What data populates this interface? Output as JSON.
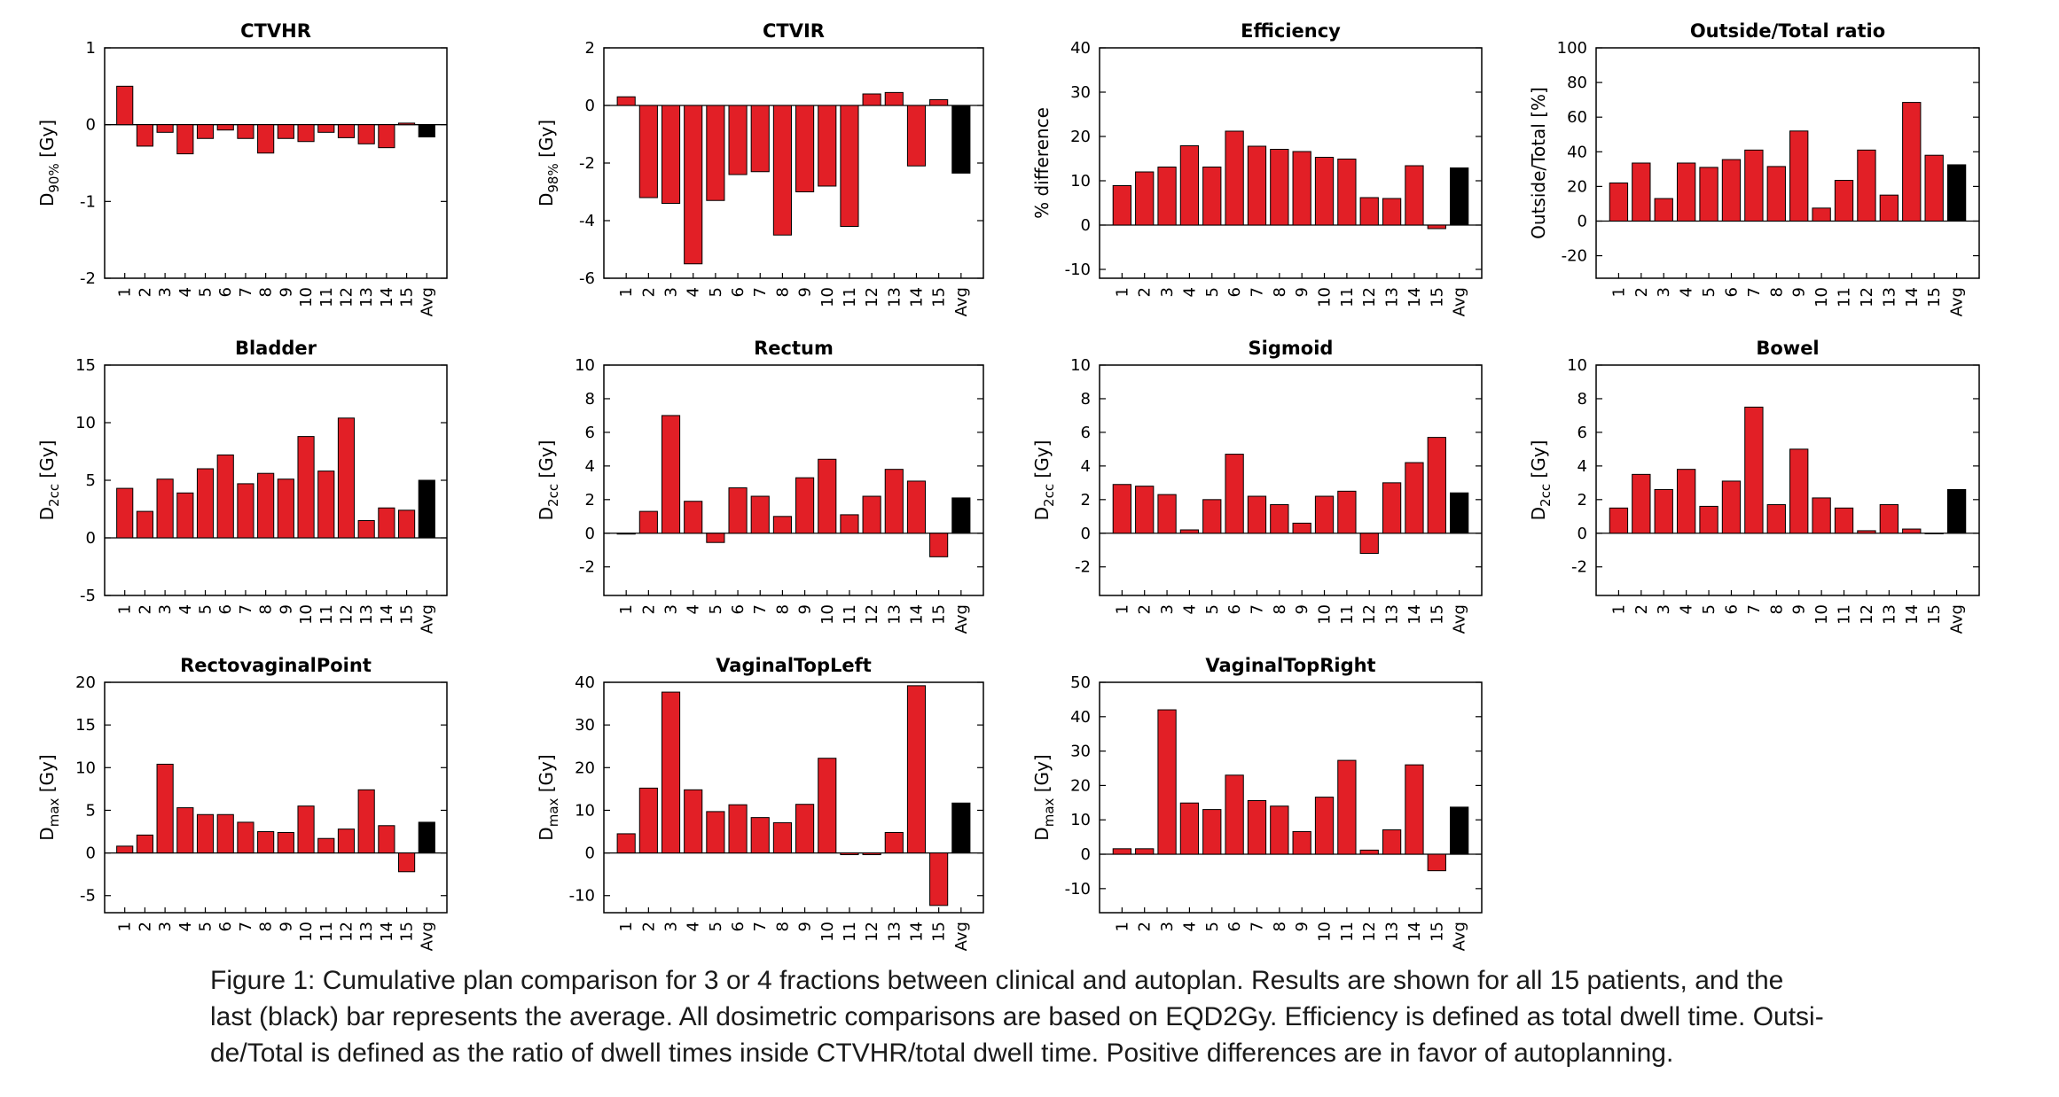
{
  "colors": {
    "bar": "#e21f26",
    "avg": "#000000",
    "edge": "#000000"
  },
  "chart_data": [
    {
      "type": "bar",
      "title": "CTVHR",
      "ylabel": {
        "main": "D",
        "sub": "90%",
        "unit": " [Gy]"
      },
      "categories": [
        "1",
        "2",
        "3",
        "4",
        "5",
        "6",
        "7",
        "8",
        "9",
        "10",
        "11",
        "12",
        "13",
        "14",
        "15",
        "Avg"
      ],
      "values": [
        0.5,
        -0.28,
        -0.1,
        -0.38,
        -0.18,
        -0.07,
        -0.18,
        -0.37,
        -0.18,
        -0.22,
        -0.1,
        -0.17,
        -0.25,
        -0.3,
        0.02,
        -0.16
      ],
      "ylim": [
        -2,
        1
      ],
      "yticks": [
        -2,
        -1,
        0,
        1
      ],
      "ytick_labels": [
        "-2",
        "-1",
        "0",
        "1"
      ]
    },
    {
      "type": "bar",
      "title": "CTVIR",
      "ylabel": {
        "main": "D",
        "sub": "98%",
        "unit": " [Gy]"
      },
      "categories": [
        "1",
        "2",
        "3",
        "4",
        "5",
        "6",
        "7",
        "8",
        "9",
        "10",
        "11",
        "12",
        "13",
        "14",
        "15",
        "Avg"
      ],
      "values": [
        0.3,
        -3.2,
        -3.4,
        -5.5,
        -3.3,
        -2.4,
        -2.3,
        -4.5,
        -3.0,
        -2.8,
        -4.2,
        0.4,
        0.45,
        -2.1,
        0.2,
        -2.35
      ],
      "ylim": [
        -6,
        2
      ],
      "yticks": [
        -6,
        -4,
        -2,
        0,
        2
      ],
      "ytick_labels": [
        "-6",
        "-4",
        "-2",
        "0",
        "2"
      ]
    },
    {
      "type": "bar",
      "title": "Efficiency",
      "ylabel": {
        "main": "% difference",
        "sub": "",
        "unit": ""
      },
      "categories": [
        "1",
        "2",
        "3",
        "4",
        "5",
        "6",
        "7",
        "8",
        "9",
        "10",
        "11",
        "12",
        "13",
        "14",
        "15",
        "Avg"
      ],
      "values": [
        8.9,
        12.0,
        13.1,
        17.9,
        13.1,
        21.2,
        17.8,
        17.1,
        16.6,
        15.3,
        14.9,
        6.2,
        6.0,
        13.4,
        -0.8,
        12.9
      ],
      "ylim": [
        -12,
        40
      ],
      "yticks": [
        -10,
        0,
        10,
        20,
        30,
        40
      ],
      "ytick_labels": [
        "-10",
        "0",
        "10",
        "20",
        "30",
        "40"
      ]
    },
    {
      "type": "bar",
      "title": "Outside/Total ratio",
      "ylabel": {
        "main": "Outside/Total [%]",
        "sub": "",
        "unit": ""
      },
      "categories": [
        "1",
        "2",
        "3",
        "4",
        "5",
        "6",
        "7",
        "8",
        "9",
        "10",
        "11",
        "12",
        "13",
        "14",
        "15",
        "Avg"
      ],
      "values": [
        22,
        33.5,
        13,
        33.5,
        31,
        35.5,
        41,
        31.5,
        52,
        7.5,
        23.5,
        41,
        15,
        68.5,
        38,
        32.5
      ],
      "ylim": [
        -33,
        100
      ],
      "yticks": [
        -20,
        0,
        20,
        40,
        60,
        80,
        100
      ],
      "ytick_labels": [
        "-20",
        "0",
        "20",
        "40",
        "60",
        "80",
        "100"
      ]
    },
    {
      "type": "bar",
      "title": "Bladder",
      "ylabel": {
        "main": "D",
        "sub": "2cc",
        "unit": " [Gy]"
      },
      "categories": [
        "1",
        "2",
        "3",
        "4",
        "5",
        "6",
        "7",
        "8",
        "9",
        "10",
        "11",
        "12",
        "13",
        "14",
        "15",
        "Avg"
      ],
      "values": [
        4.3,
        2.3,
        5.1,
        3.9,
        6.0,
        7.2,
        4.7,
        5.6,
        5.1,
        8.8,
        5.8,
        10.4,
        1.5,
        2.6,
        2.4,
        5.0
      ],
      "ylim": [
        -5,
        15
      ],
      "yticks": [
        -5,
        0,
        5,
        10,
        15
      ],
      "ytick_labels": [
        "-5",
        "0",
        "5",
        "10",
        "15"
      ]
    },
    {
      "type": "bar",
      "title": "Rectum",
      "ylabel": {
        "main": "D",
        "sub": "2cc",
        "unit": " [Gy]"
      },
      "categories": [
        "1",
        "2",
        "3",
        "4",
        "5",
        "6",
        "7",
        "8",
        "9",
        "10",
        "11",
        "12",
        "13",
        "14",
        "15",
        "Avg"
      ],
      "values": [
        -0.05,
        1.3,
        7.0,
        1.9,
        -0.55,
        2.7,
        2.2,
        1.0,
        3.3,
        4.4,
        1.1,
        2.2,
        3.8,
        3.1,
        -1.4,
        2.1
      ],
      "ylim": [
        -3.7,
        10
      ],
      "yticks": [
        -2,
        0,
        2,
        4,
        6,
        8,
        10
      ],
      "ytick_labels": [
        "-2",
        "0",
        "2",
        "4",
        "6",
        "8",
        "10"
      ]
    },
    {
      "type": "bar",
      "title": "Sigmoid",
      "ylabel": {
        "main": "D",
        "sub": "2cc",
        "unit": " [Gy]"
      },
      "categories": [
        "1",
        "2",
        "3",
        "4",
        "5",
        "6",
        "7",
        "8",
        "9",
        "10",
        "11",
        "12",
        "13",
        "14",
        "15",
        "Avg"
      ],
      "values": [
        2.9,
        2.8,
        2.3,
        0.2,
        2.0,
        4.7,
        2.2,
        1.7,
        0.6,
        2.2,
        2.5,
        -1.2,
        3.0,
        4.2,
        5.7,
        2.4
      ],
      "ylim": [
        -3.7,
        10
      ],
      "yticks": [
        -2,
        0,
        2,
        4,
        6,
        8,
        10
      ],
      "ytick_labels": [
        "-2",
        "0",
        "2",
        "4",
        "6",
        "8",
        "10"
      ]
    },
    {
      "type": "bar",
      "title": "Bowel",
      "ylabel": {
        "main": "D",
        "sub": "2cc",
        "unit": " [Gy]"
      },
      "categories": [
        "1",
        "2",
        "3",
        "4",
        "5",
        "6",
        "7",
        "8",
        "9",
        "10",
        "11",
        "12",
        "13",
        "14",
        "15",
        "Avg"
      ],
      "values": [
        1.5,
        3.5,
        2.6,
        3.8,
        1.6,
        3.1,
        7.5,
        1.7,
        5.0,
        2.1,
        1.5,
        0.15,
        1.7,
        0.25,
        0,
        2.6
      ],
      "ylim": [
        -3.7,
        10
      ],
      "yticks": [
        -2,
        0,
        2,
        4,
        6,
        8,
        10
      ],
      "ytick_labels": [
        "-2",
        "0",
        "2",
        "4",
        "6",
        "8",
        "10"
      ]
    },
    {
      "type": "bar",
      "title": "RectovaginalPoint",
      "ylabel": {
        "main": "D",
        "sub": "max",
        "unit": " [Gy]"
      },
      "categories": [
        "1",
        "2",
        "3",
        "4",
        "5",
        "6",
        "7",
        "8",
        "9",
        "10",
        "11",
        "12",
        "13",
        "14",
        "15",
        "Avg"
      ],
      "values": [
        0.8,
        2.1,
        10.4,
        5.3,
        4.5,
        4.5,
        3.6,
        2.5,
        2.4,
        5.5,
        1.7,
        2.8,
        7.4,
        3.2,
        -2.2,
        3.6
      ],
      "ylim": [
        -7,
        20
      ],
      "yticks": [
        -5,
        0,
        5,
        10,
        15,
        20
      ],
      "ytick_labels": [
        "-5",
        "0",
        "5",
        "10",
        "15",
        "20"
      ]
    },
    {
      "type": "bar",
      "title": "VaginalTopLeft",
      "ylabel": {
        "main": "D",
        "sub": "max",
        "unit": " [Gy]"
      },
      "categories": [
        "1",
        "2",
        "3",
        "4",
        "5",
        "6",
        "7",
        "8",
        "9",
        "10",
        "11",
        "12",
        "13",
        "14",
        "15",
        "Avg"
      ],
      "values": [
        4.5,
        15.2,
        37.7,
        14.8,
        9.7,
        11.3,
        8.3,
        7.1,
        11.4,
        22.2,
        -0.4,
        -0.4,
        4.8,
        39.2,
        -12.3,
        11.7
      ],
      "ylim": [
        -14,
        40
      ],
      "yticks": [
        -10,
        0,
        10,
        20,
        30,
        40
      ],
      "ytick_labels": [
        "-10",
        "0",
        "10",
        "20",
        "30",
        "40"
      ]
    },
    {
      "type": "bar",
      "title": "VaginalTopRight",
      "ylabel": {
        "main": "D",
        "sub": "max",
        "unit": " [Gy]"
      },
      "categories": [
        "1",
        "2",
        "3",
        "4",
        "5",
        "6",
        "7",
        "8",
        "9",
        "10",
        "11",
        "12",
        "13",
        "14",
        "15",
        "Avg"
      ],
      "values": [
        1.6,
        1.6,
        42.0,
        14.9,
        13.0,
        23.0,
        15.6,
        14.0,
        6.6,
        16.6,
        27.3,
        1.2,
        7.1,
        26.0,
        -4.8,
        13.7
      ],
      "ylim": [
        -17,
        50
      ],
      "yticks": [
        -10,
        0,
        10,
        20,
        30,
        40,
        50
      ],
      "ytick_labels": [
        "-10",
        "0",
        "10",
        "20",
        "30",
        "40",
        "50"
      ]
    }
  ],
  "caption": {
    "line1": "Figure 1: Cumulative plan comparison for 3 or 4 fractions between clinical and autoplan. Results are shown for all 15 patients, and the",
    "line2": "last (black) bar represents the average. All dosimetric comparisons are based on EQD2Gy. Efficiency is defined as total dwell time.  Outsi-",
    "line3": "de/Total is defined as the ratio of dwell times inside CTVHR/total dwell time. Positive differences are in favor of autoplanning."
  }
}
